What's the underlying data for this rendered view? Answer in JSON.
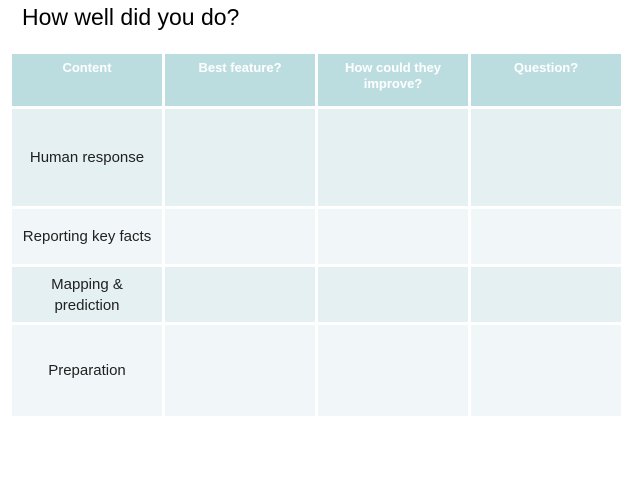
{
  "slide": {
    "title": "How well did you do?"
  },
  "table": {
    "columns": [
      "Content",
      "Best feature?",
      "How could they\nimprove?",
      "Question?"
    ],
    "rows": [
      {
        "cells": [
          "Human response",
          "",
          "",
          ""
        ]
      },
      {
        "cells": [
          "Reporting key facts",
          "",
          "",
          ""
        ]
      },
      {
        "cells": [
          "Mapping &\nprediction",
          "",
          "",
          ""
        ]
      },
      {
        "cells": [
          "Preparation",
          "",
          "",
          ""
        ]
      }
    ]
  },
  "colors": {
    "title_text": "#000000",
    "header_bg": "#bcdde0",
    "header_text": "#ffffff",
    "row_band_dark": "#e4f0f2",
    "row_band_light": "#f1f7f9",
    "body_text": "#212121",
    "divider": "#ffffff"
  }
}
